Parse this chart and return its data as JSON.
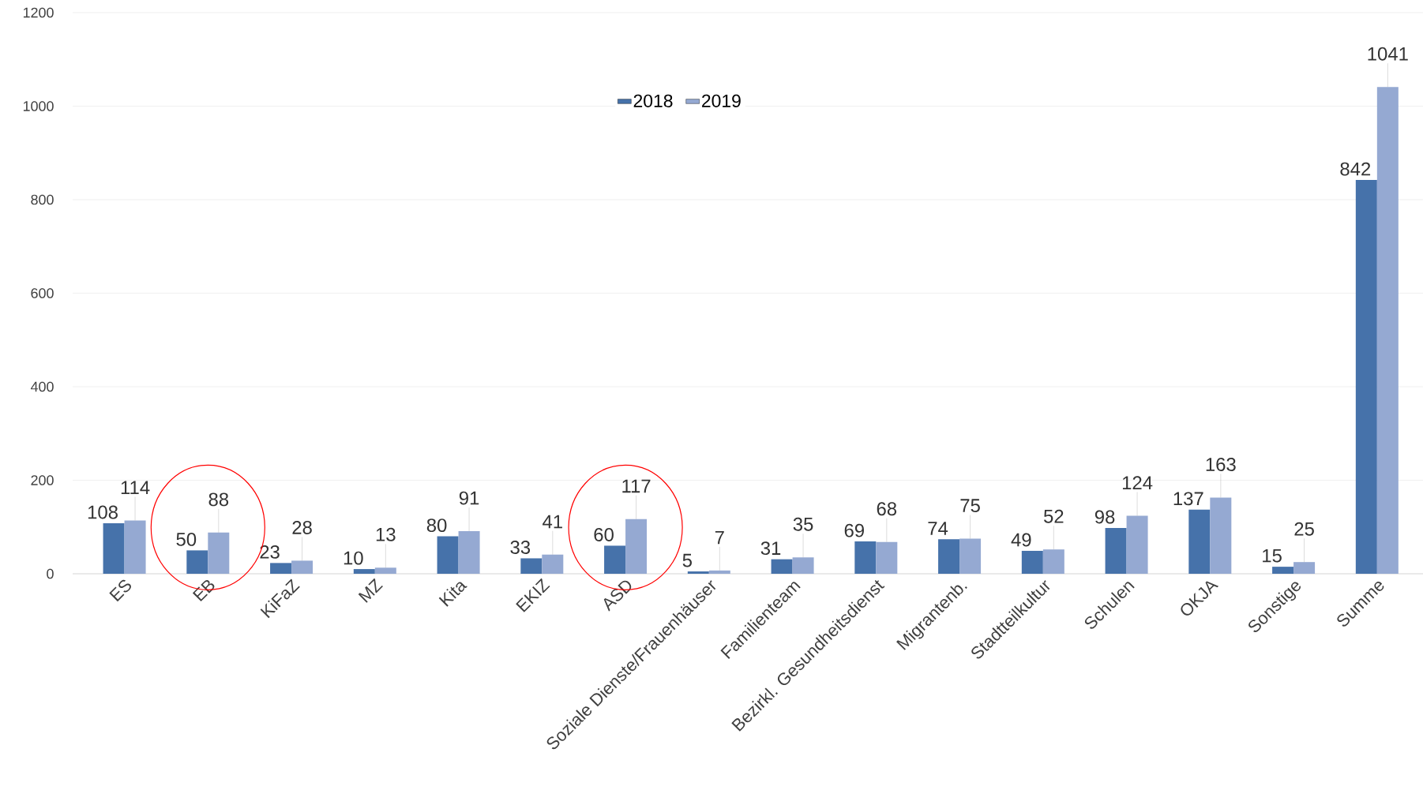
{
  "chart_data": {
    "type": "bar",
    "categories": [
      "ES",
      "EB",
      "KiFaZ",
      "MZ",
      "Kita",
      "EKIZ",
      "ASD",
      "Soziale Dienste/Frauenhäuser",
      "Familienteam",
      "Bezirkl. Gesundheitsdienst",
      "Migrantenb.",
      "Stadtteilkultur",
      "Schulen",
      "OKJA",
      "Sonstige",
      "Summe"
    ],
    "series": [
      {
        "name": "2018",
        "color": "#4672aa",
        "values": [
          108,
          50,
          23,
          10,
          80,
          33,
          60,
          5,
          31,
          69,
          74,
          49,
          98,
          137,
          15,
          842
        ]
      },
      {
        "name": "2019",
        "color": "#95a9d2",
        "values": [
          114,
          88,
          28,
          13,
          91,
          41,
          117,
          7,
          35,
          68,
          75,
          52,
          124,
          163,
          25,
          1041
        ]
      }
    ],
    "ylim": [
      0,
      1200
    ],
    "yticks": [
      0,
      200,
      400,
      600,
      800,
      1000,
      1200
    ],
    "grid": "y",
    "legend": "top",
    "data_labels": true
  }
}
